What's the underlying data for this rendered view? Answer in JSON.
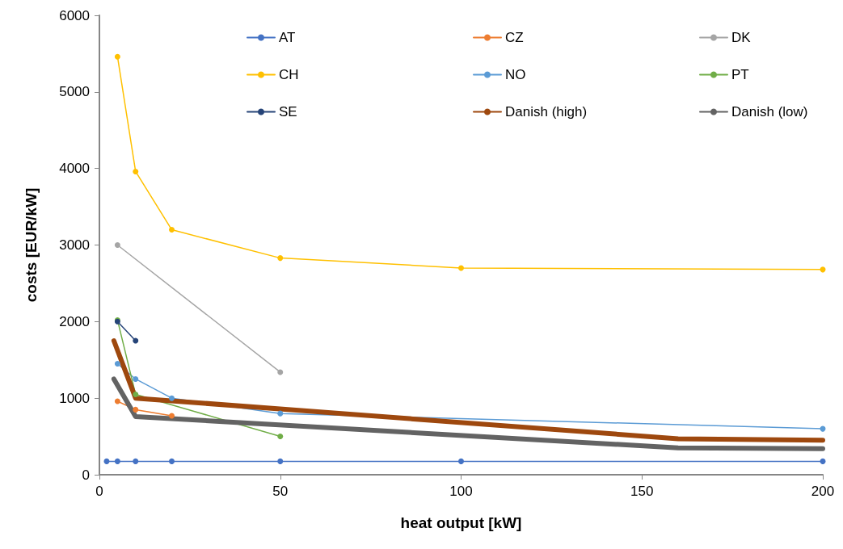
{
  "chart_data": {
    "type": "line",
    "xlabel": "heat output [kW]",
    "ylabel": "costs [EUR/kW]",
    "xlim": [
      0,
      200
    ],
    "xticks": [
      0,
      50,
      100,
      150,
      200
    ],
    "ylim": [
      0,
      6000
    ],
    "yticks": [
      0,
      1000,
      2000,
      3000,
      4000,
      5000,
      6000
    ],
    "grid": false,
    "legend": "top",
    "marker": "circle",
    "line_style": "solid",
    "series": [
      {
        "name": "AT",
        "color": "#4472c4",
        "x": [
          2,
          5,
          10,
          20,
          50,
          100,
          200
        ],
        "values": [
          175,
          175,
          175,
          175,
          175,
          175,
          175
        ]
      },
      {
        "name": "CZ",
        "color": "#ed7d31",
        "x": [
          5,
          10,
          20
        ],
        "values": [
          960,
          850,
          770
        ]
      },
      {
        "name": "DK",
        "color": "#a5a5a5",
        "x": [
          5,
          50
        ],
        "values": [
          3000,
          1340
        ]
      },
      {
        "name": "CH",
        "color": "#ffc000",
        "x": [
          5,
          10,
          20,
          50,
          100,
          200
        ],
        "values": [
          5460,
          3960,
          3200,
          2830,
          2700,
          2680
        ]
      },
      {
        "name": "NO",
        "color": "#5b9bd5",
        "x": [
          5,
          10,
          20,
          50,
          200
        ],
        "values": [
          1450,
          1250,
          1000,
          800,
          600
        ]
      },
      {
        "name": "PT",
        "color": "#70ad47",
        "x": [
          5,
          10,
          50
        ],
        "values": [
          2020,
          1050,
          500
        ]
      },
      {
        "name": "SE",
        "color": "#264478",
        "x": [
          5,
          10
        ],
        "values": [
          2000,
          1750
        ]
      },
      {
        "name": "Danish (high)",
        "color": "#9e480e",
        "marker": "none",
        "x": [
          4,
          10,
          160,
          200
        ],
        "values": [
          1750,
          1000,
          470,
          450
        ]
      },
      {
        "name": "Danish (low)",
        "color": "#636363",
        "marker": "none",
        "x": [
          4,
          10,
          160,
          200
        ],
        "values": [
          1250,
          760,
          350,
          340
        ]
      }
    ]
  }
}
